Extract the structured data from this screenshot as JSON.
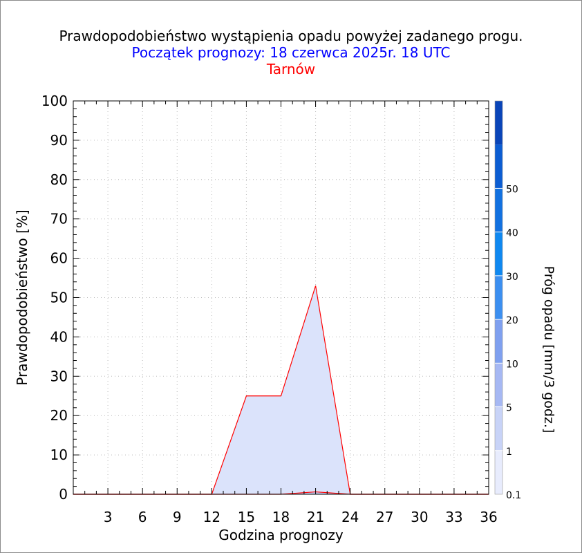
{
  "title": "Prawdopodobieństwo wystąpienia opadu powyżej zadanego progu.",
  "subtitle": "Początek prognozy: 18 czerwca 2025r. 18 UTC",
  "location": "Tarnów",
  "colors": {
    "title": "#000000",
    "subtitle": "#0000ff",
    "location": "#ff0000",
    "fill": "#dbe3fb",
    "series_line": "#ff0000"
  },
  "chart_data": {
    "type": "area",
    "title": "Prawdopodobieństwo wystąpienia opadu powyżej zadanego progu.",
    "xlabel": "Godzina prognozy",
    "ylabel": "Prawdopodobieństwo [%]",
    "xlim": [
      0,
      36
    ],
    "ylim": [
      0,
      100
    ],
    "xticks": [
      3,
      6,
      9,
      12,
      15,
      18,
      21,
      24,
      27,
      30,
      33,
      36
    ],
    "yticks": [
      0,
      10,
      20,
      30,
      40,
      50,
      60,
      70,
      80,
      90,
      100
    ],
    "grid": true,
    "x": [
      0,
      3,
      6,
      9,
      12,
      15,
      18,
      21,
      24,
      27,
      30,
      33,
      36
    ],
    "series": [
      {
        "threshold": "0.1",
        "color": "#dbe3fb",
        "values": [
          0,
          0,
          0,
          0,
          0,
          25,
          25,
          53,
          0,
          0,
          0,
          0,
          0
        ]
      },
      {
        "threshold": "1",
        "color": "#c3d0f7",
        "values": [
          0,
          0,
          0,
          0,
          0,
          0,
          0,
          0.6,
          0,
          0,
          0,
          0,
          0
        ]
      }
    ],
    "colorbar": {
      "label": "Próg opadu [mm/3 godz.]",
      "levels": [
        "0.1",
        "1",
        "5",
        "10",
        "20",
        "30",
        "40",
        "50"
      ],
      "colors": [
        "#e8ecfd",
        "#c8d3f7",
        "#a6b8f3",
        "#7fa0ef",
        "#3c8ff0",
        "#0f88f0",
        "#1271e0",
        "#0c5dd2",
        "#0a45b8"
      ]
    }
  }
}
